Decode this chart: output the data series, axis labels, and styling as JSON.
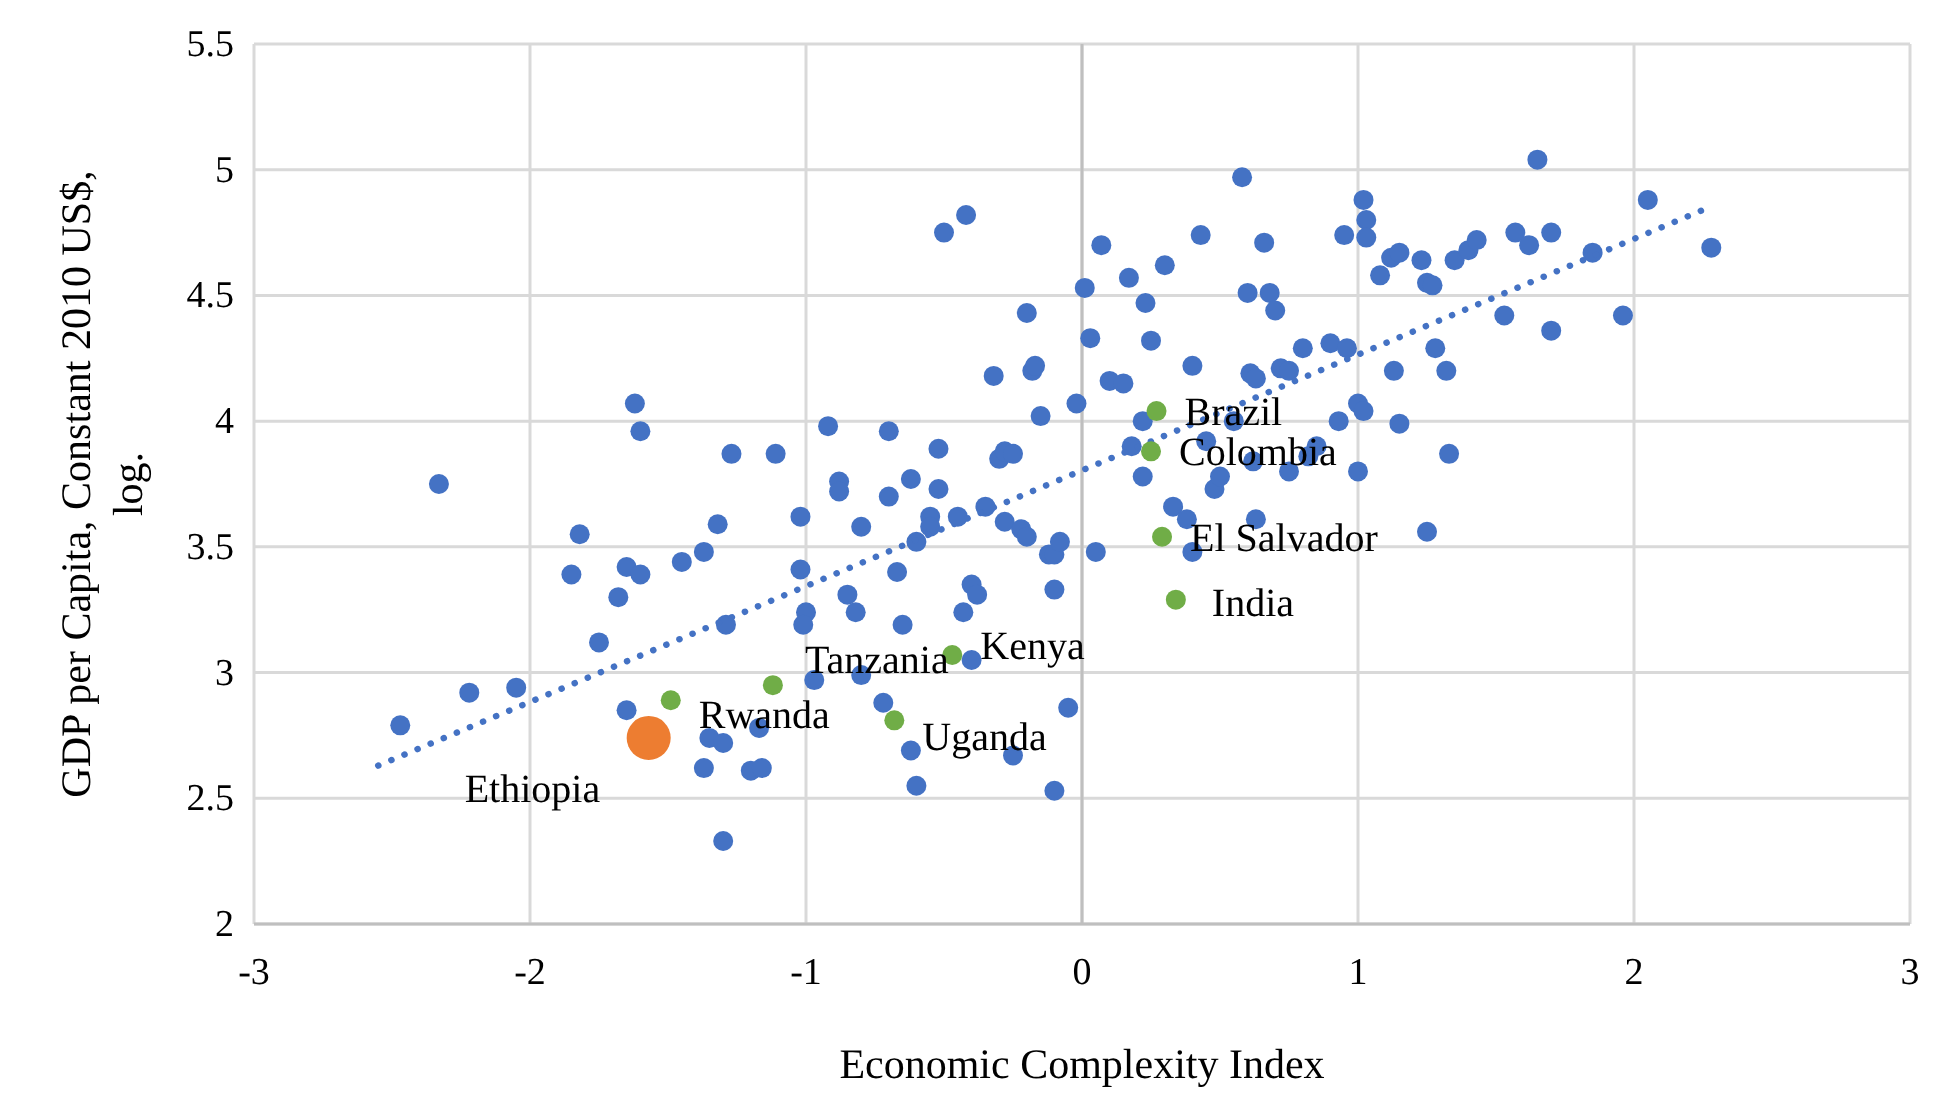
{
  "chart_data": {
    "type": "scatter",
    "xlabel": "Economic Complexity Index",
    "ylabel": "GDP per Capita, Constant 2010 US$, log.",
    "xlim": [
      -3,
      3
    ],
    "xticks": [
      -3,
      -2,
      -1,
      0,
      1,
      2,
      3
    ],
    "ylim": [
      2,
      5.5
    ],
    "yticks": [
      2,
      2.5,
      3,
      3.5,
      4,
      4.5,
      5,
      5.5
    ],
    "grid": true,
    "marker": "circle",
    "series": [
      {
        "color": "#4472c4",
        "x": [
          -2.47,
          -2.33,
          -2.22,
          -2.05,
          -1.85,
          -1.82,
          -1.75,
          -1.68,
          -1.65,
          -1.62,
          -1.6,
          -1.6,
          -1.65,
          -1.45,
          -1.37,
          -1.32,
          -1.27,
          -1.29,
          -1.35,
          -1.37,
          -1.3,
          -1.2,
          -1.16,
          -1.17,
          -1.3,
          -1.11,
          -1.02,
          -1.02,
          -1.0,
          -1.01,
          -0.97,
          -0.92,
          -0.88,
          -0.88,
          -0.85,
          -0.82,
          -0.8,
          -0.8,
          -0.72,
          -0.7,
          -0.7,
          -0.67,
          -0.65,
          -0.62,
          -0.6,
          -0.62,
          -0.6,
          -0.55,
          -0.55,
          -0.52,
          -0.52,
          -0.5,
          -0.42,
          -0.45,
          -0.43,
          -0.4,
          -0.38,
          -0.4,
          -0.35,
          -0.32,
          -0.3,
          -0.28,
          -0.25,
          -0.28,
          -0.22,
          -0.25,
          -0.2,
          -0.18,
          -0.17,
          -0.15,
          -0.2,
          -0.12,
          -0.1,
          -0.1,
          -0.08,
          -0.1,
          -0.05,
          -0.02,
          0.01,
          0.03,
          0.07,
          0.05,
          0.1,
          0.15,
          0.17,
          0.18,
          0.22,
          0.23,
          0.25,
          0.22,
          0.3,
          0.33,
          0.38,
          0.4,
          0.4,
          0.43,
          0.45,
          0.48,
          0.5,
          0.55,
          0.58,
          0.6,
          0.61,
          0.63,
          0.62,
          0.63,
          0.66,
          0.68,
          0.7,
          0.72,
          0.75,
          0.75,
          0.8,
          0.82,
          0.85,
          0.9,
          0.93,
          0.95,
          0.96,
          1.0,
          1.02,
          1.03,
          1.03,
          1.02,
          1.0,
          1.08,
          1.12,
          1.15,
          1.13,
          1.15,
          1.23,
          1.25,
          1.27,
          1.25,
          1.28,
          1.32,
          1.33,
          1.35,
          1.4,
          1.43,
          1.53,
          1.57,
          1.62,
          1.65,
          1.7,
          1.7,
          1.85,
          1.96,
          2.05,
          2.28
        ],
        "values": [
          2.79,
          3.75,
          2.92,
          2.94,
          3.39,
          3.55,
          3.12,
          3.3,
          3.42,
          4.07,
          3.96,
          3.39,
          2.85,
          3.44,
          3.48,
          3.59,
          3.87,
          3.19,
          2.74,
          2.62,
          2.72,
          2.61,
          2.62,
          2.78,
          2.33,
          3.87,
          3.62,
          3.41,
          3.24,
          3.19,
          2.97,
          3.98,
          3.76,
          3.72,
          3.31,
          3.24,
          2.99,
          3.58,
          2.88,
          3.7,
          3.96,
          3.4,
          3.19,
          3.77,
          3.52,
          2.69,
          2.55,
          3.62,
          3.58,
          3.89,
          3.73,
          4.75,
          4.82,
          3.62,
          3.24,
          3.35,
          3.31,
          3.05,
          3.66,
          4.18,
          3.85,
          3.88,
          3.87,
          3.6,
          3.57,
          2.67,
          4.43,
          4.2,
          4.22,
          4.02,
          3.54,
          3.47,
          3.33,
          3.47,
          3.52,
          2.53,
          2.86,
          4.07,
          4.53,
          4.33,
          4.7,
          3.48,
          4.16,
          4.15,
          4.57,
          3.9,
          4.0,
          4.47,
          4.32,
          3.78,
          4.62,
          3.66,
          3.61,
          3.48,
          4.22,
          4.74,
          3.92,
          3.73,
          3.78,
          4.0,
          4.97,
          4.51,
          4.19,
          4.17,
          3.84,
          3.61,
          4.71,
          4.51,
          4.44,
          4.21,
          4.2,
          3.8,
          4.29,
          3.86,
          3.9,
          4.31,
          4.0,
          4.74,
          4.29,
          4.07,
          4.04,
          4.8,
          4.73,
          4.88,
          3.8,
          4.58,
          4.65,
          4.67,
          4.2,
          3.99,
          4.64,
          4.55,
          4.54,
          3.56,
          4.29,
          4.2,
          3.87,
          4.64,
          4.68,
          4.72,
          4.42,
          4.75,
          4.7,
          5.04,
          4.75,
          4.36,
          4.67,
          4.42,
          4.88,
          4.69
        ]
      },
      {
        "type": "line",
        "color": "#4472c4",
        "line_style": "dotted",
        "marker": "none",
        "x": [
          -2.55,
          2.25
        ],
        "values": [
          2.63,
          4.84
        ]
      },
      {
        "color": "#70ad47",
        "x": [
          0.27,
          0.25,
          0.29,
          0.34,
          -0.47,
          -1.12,
          -1.49,
          -0.68
        ],
        "values": [
          4.04,
          3.88,
          3.54,
          3.29,
          3.07,
          2.95,
          2.89,
          2.81
        ]
      },
      {
        "type": "bubble",
        "color": "#ed7d31",
        "x": [
          -1.57
        ],
        "values": [
          2.74
        ],
        "sizes": [
          1
        ]
      }
    ],
    "annotations": [
      {
        "text": "Brazil",
        "x": 0.27,
        "y": 4.04
      },
      {
        "text": "Colombia",
        "x": 0.25,
        "y": 3.88
      },
      {
        "text": "El Salvador",
        "x": 0.29,
        "y": 3.54
      },
      {
        "text": "India",
        "x": 0.34,
        "y": 3.29
      },
      {
        "text": "Kenya",
        "x": -0.47,
        "y": 3.07
      },
      {
        "text": "Tanzania",
        "x": -1.12,
        "y": 2.95
      },
      {
        "text": "Rwanda",
        "x": -1.49,
        "y": 2.89
      },
      {
        "text": "Uganda",
        "x": -0.68,
        "y": 2.81
      },
      {
        "text": "Ethiopia",
        "x": -1.57,
        "y": 2.74
      }
    ]
  }
}
